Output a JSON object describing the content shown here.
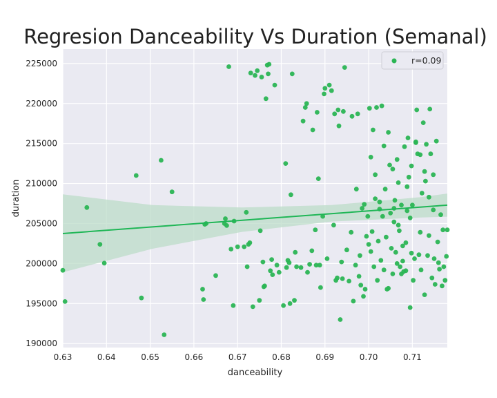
{
  "chart_data": {
    "type": "scatter",
    "title": "Regresion Danceability Vs Duration (Semanal)",
    "xlabel": "danceability",
    "ylabel": "duration",
    "xlim": [
      0.63,
      0.718
    ],
    "ylim": [
      189500,
      226800
    ],
    "xticks": [
      0.63,
      0.64,
      0.65,
      0.66,
      0.67,
      0.68,
      0.69,
      0.7,
      0.71
    ],
    "xtick_labels": [
      "0.63",
      "0.64",
      "0.65",
      "0.66",
      "0.67",
      "0.68",
      "0.69",
      "0.70",
      "0.71"
    ],
    "yticks": [
      190000,
      195000,
      200000,
      205000,
      210000,
      215000,
      220000,
      225000
    ],
    "ytick_labels": [
      "190000",
      "195000",
      "200000",
      "205000",
      "210000",
      "215000",
      "220000",
      "225000"
    ],
    "grid": true,
    "legend": {
      "placement": "top-right",
      "label": "r=0.09"
    },
    "colors": {
      "points": "#2bb554",
      "line": "#1fb656",
      "band": "#bcdcc8",
      "plot_bg": "#eaeaf2",
      "grid": "#ffffff"
    },
    "regression": {
      "x": [
        0.63,
        0.718
      ],
      "y": [
        203750,
        207300
      ]
    },
    "confidence_band": {
      "x": [
        0.63,
        0.6505,
        0.671,
        0.6915,
        0.712,
        0.718
      ],
      "lower": [
        198900,
        201850,
        203950,
        205250,
        205750,
        205850
      ],
      "upper": [
        208650,
        207300,
        207000,
        207300,
        208300,
        208750
      ]
    },
    "points": [
      [
        0.63,
        199150
      ],
      [
        0.6305,
        195250
      ],
      [
        0.6355,
        207000
      ],
      [
        0.6385,
        202400
      ],
      [
        0.6395,
        200050
      ],
      [
        0.6468,
        211000
      ],
      [
        0.648,
        195700
      ],
      [
        0.6525,
        212900
      ],
      [
        0.6532,
        191100
      ],
      [
        0.655,
        208950
      ],
      [
        0.662,
        196800
      ],
      [
        0.6622,
        195500
      ],
      [
        0.6625,
        204900
      ],
      [
        0.6628,
        205000
      ],
      [
        0.665,
        198500
      ],
      [
        0.667,
        205000
      ],
      [
        0.6672,
        205600
      ],
      [
        0.6675,
        204750
      ],
      [
        0.668,
        224600
      ],
      [
        0.6685,
        201800
      ],
      [
        0.669,
        194750
      ],
      [
        0.6692,
        205300
      ],
      [
        0.67,
        202100
      ],
      [
        0.6715,
        202100
      ],
      [
        0.672,
        206400
      ],
      [
        0.6722,
        199600
      ],
      [
        0.6725,
        202400
      ],
      [
        0.6728,
        202600
      ],
      [
        0.673,
        223800
      ],
      [
        0.6735,
        194600
      ],
      [
        0.674,
        223500
      ],
      [
        0.6745,
        224100
      ],
      [
        0.675,
        195400
      ],
      [
        0.6752,
        204100
      ],
      [
        0.6755,
        223300
      ],
      [
        0.6758,
        200200
      ],
      [
        0.676,
        197100
      ],
      [
        0.6762,
        197200
      ],
      [
        0.6765,
        220600
      ],
      [
        0.6768,
        224800
      ],
      [
        0.677,
        223700
      ],
      [
        0.6772,
        224900
      ],
      [
        0.6775,
        199100
      ],
      [
        0.6778,
        200500
      ],
      [
        0.678,
        198600
      ],
      [
        0.6785,
        222300
      ],
      [
        0.679,
        199800
      ],
      [
        0.6795,
        198900
      ],
      [
        0.6805,
        194750
      ],
      [
        0.681,
        212500
      ],
      [
        0.6812,
        199500
      ],
      [
        0.6815,
        200400
      ],
      [
        0.6818,
        200100
      ],
      [
        0.682,
        195000
      ],
      [
        0.6822,
        208600
      ],
      [
        0.6825,
        223700
      ],
      [
        0.683,
        195400
      ],
      [
        0.6832,
        201400
      ],
      [
        0.6835,
        199600
      ],
      [
        0.6845,
        199500
      ],
      [
        0.685,
        217800
      ],
      [
        0.6855,
        219500
      ],
      [
        0.6858,
        220000
      ],
      [
        0.686,
        198900
      ],
      [
        0.6865,
        199900
      ],
      [
        0.687,
        201600
      ],
      [
        0.6872,
        216700
      ],
      [
        0.6878,
        204200
      ],
      [
        0.688,
        199800
      ],
      [
        0.6882,
        218900
      ],
      [
        0.6885,
        210600
      ],
      [
        0.6888,
        199800
      ],
      [
        0.689,
        197000
      ],
      [
        0.6895,
        205900
      ],
      [
        0.6898,
        221200
      ],
      [
        0.69,
        221900
      ],
      [
        0.6905,
        200600
      ],
      [
        0.691,
        222300
      ],
      [
        0.6915,
        221600
      ],
      [
        0.692,
        204800
      ],
      [
        0.6922,
        218700
      ],
      [
        0.6925,
        197900
      ],
      [
        0.6928,
        198200
      ],
      [
        0.693,
        219200
      ],
      [
        0.6932,
        217200
      ],
      [
        0.6935,
        193000
      ],
      [
        0.6938,
        200200
      ],
      [
        0.694,
        198100
      ],
      [
        0.6942,
        219000
      ],
      [
        0.6945,
        224500
      ],
      [
        0.695,
        201700
      ],
      [
        0.6955,
        197800
      ],
      [
        0.696,
        203900
      ],
      [
        0.6962,
        218400
      ],
      [
        0.6965,
        195300
      ],
      [
        0.697,
        199800
      ],
      [
        0.6972,
        209300
      ],
      [
        0.6975,
        218700
      ],
      [
        0.6978,
        198400
      ],
      [
        0.698,
        201000
      ],
      [
        0.6982,
        197300
      ],
      [
        0.6985,
        206900
      ],
      [
        0.6988,
        195900
      ],
      [
        0.699,
        207400
      ],
      [
        0.6992,
        196800
      ],
      [
        0.6995,
        203400
      ],
      [
        0.6998,
        205900
      ],
      [
        0.7,
        202400
      ],
      [
        0.7002,
        219400
      ],
      [
        0.7005,
        201500
      ],
      [
        0.7008,
        204000
      ],
      [
        0.701,
        216700
      ],
      [
        0.7012,
        199600
      ],
      [
        0.7015,
        208100
      ],
      [
        0.7018,
        219500
      ],
      [
        0.702,
        197900
      ],
      [
        0.7022,
        202800
      ],
      [
        0.7025,
        206800
      ],
      [
        0.7028,
        200400
      ],
      [
        0.703,
        219700
      ],
      [
        0.7032,
        205900
      ],
      [
        0.7035,
        214700
      ],
      [
        0.7038,
        209300
      ],
      [
        0.704,
        203300
      ],
      [
        0.7042,
        196800
      ],
      [
        0.7045,
        216400
      ],
      [
        0.7048,
        212300
      ],
      [
        0.705,
        206300
      ],
      [
        0.7052,
        201900
      ],
      [
        0.7055,
        198700
      ],
      [
        0.7058,
        205200
      ],
      [
        0.706,
        207900
      ],
      [
        0.7062,
        201400
      ],
      [
        0.7065,
        213000
      ],
      [
        0.7068,
        210100
      ],
      [
        0.707,
        204100
      ],
      [
        0.7072,
        199600
      ],
      [
        0.7075,
        207300
      ],
      [
        0.7078,
        200300
      ],
      [
        0.708,
        199000
      ],
      [
        0.7082,
        214600
      ],
      [
        0.7085,
        202600
      ],
      [
        0.7088,
        206600
      ],
      [
        0.709,
        215700
      ],
      [
        0.7092,
        210800
      ],
      [
        0.7095,
        205700
      ],
      [
        0.7098,
        201300
      ],
      [
        0.71,
        207300
      ],
      [
        0.7102,
        197900
      ],
      [
        0.7105,
        200600
      ],
      [
        0.7108,
        215100
      ],
      [
        0.711,
        219200
      ],
      [
        0.7112,
        213700
      ],
      [
        0.7115,
        201100
      ],
      [
        0.7118,
        203900
      ],
      [
        0.712,
        199200
      ],
      [
        0.7122,
        208800
      ],
      [
        0.7125,
        217600
      ],
      [
        0.7128,
        196100
      ],
      [
        0.713,
        210300
      ],
      [
        0.7132,
        214900
      ],
      [
        0.7135,
        201000
      ],
      [
        0.7138,
        203500
      ],
      [
        0.714,
        219300
      ],
      [
        0.7142,
        213700
      ],
      [
        0.7145,
        198200
      ],
      [
        0.7148,
        211100
      ],
      [
        0.715,
        200600
      ],
      [
        0.7152,
        197400
      ],
      [
        0.7155,
        215300
      ],
      [
        0.7158,
        202700
      ],
      [
        0.716,
        200100
      ],
      [
        0.7162,
        199300
      ],
      [
        0.7165,
        206100
      ],
      [
        0.7168,
        197200
      ],
      [
        0.717,
        204200
      ],
      [
        0.7172,
        199600
      ],
      [
        0.7175,
        197900
      ],
      [
        0.7178,
        200900
      ],
      [
        0.718,
        204200
      ],
      [
        0.7055,
        211800
      ],
      [
        0.7065,
        200000
      ],
      [
        0.7075,
        198700
      ],
      [
        0.7085,
        199100
      ],
      [
        0.7095,
        194500
      ],
      [
        0.7005,
        213300
      ],
      [
        0.7015,
        211100
      ],
      [
        0.7025,
        207700
      ],
      [
        0.7035,
        199200
      ],
      [
        0.7045,
        196900
      ],
      [
        0.7058,
        206900
      ],
      [
        0.7068,
        204800
      ],
      [
        0.7078,
        202200
      ],
      [
        0.7088,
        209600
      ],
      [
        0.7098,
        212200
      ],
      [
        0.7108,
        215200
      ],
      [
        0.7118,
        213600
      ],
      [
        0.7128,
        211500
      ],
      [
        0.7138,
        208300
      ],
      [
        0.7148,
        206700
      ]
    ]
  }
}
